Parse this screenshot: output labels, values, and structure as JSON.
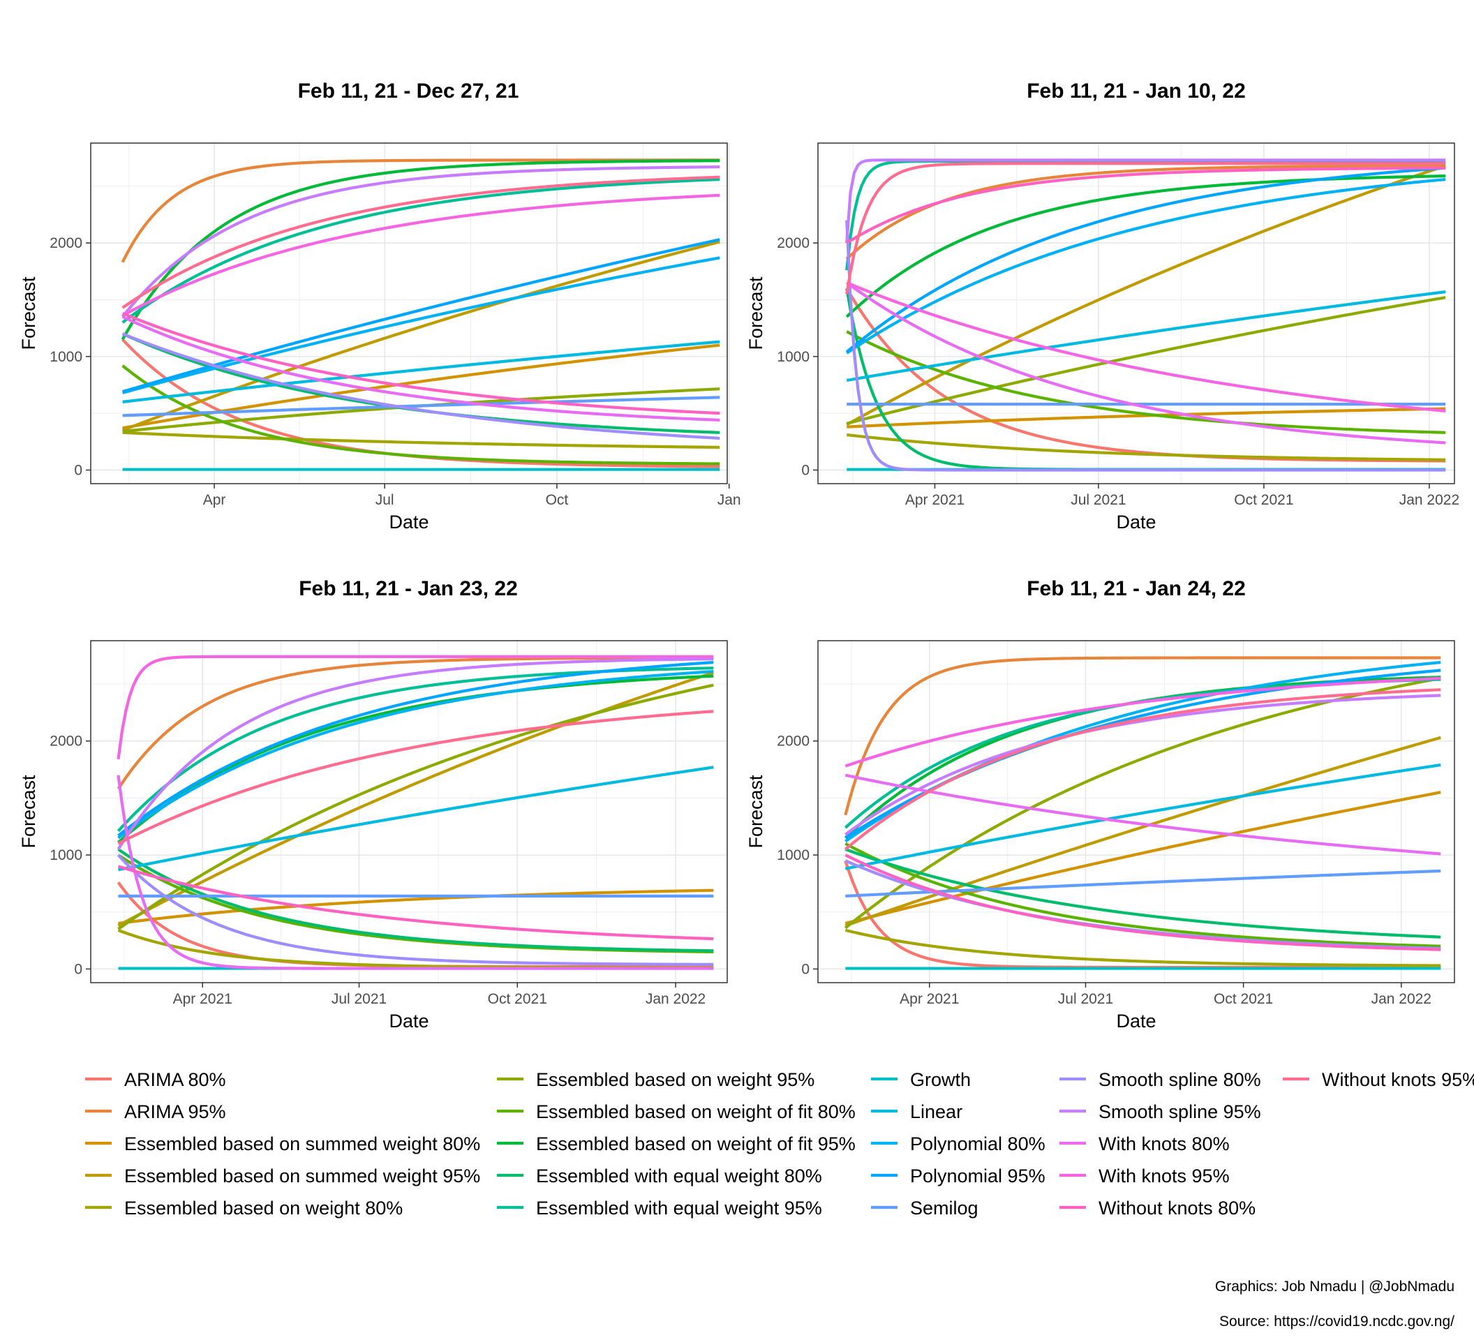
{
  "caption": {
    "graphics": "Graphics: Job Nmadu | @JobNmadu",
    "source": "Source: https://covid19.ncdc.gov.ng/"
  },
  "legend": {
    "items": [
      {
        "label": "ARIMA 80%",
        "color": "#F8766D"
      },
      {
        "label": "ARIMA 95%",
        "color": "#E7853A"
      },
      {
        "label": "Essembled based on summed weight 80%",
        "color": "#D39200"
      },
      {
        "label": "Essembled based on summed weight 95%",
        "color": "#C09B00"
      },
      {
        "label": "Essembled based on weight 80%",
        "color": "#A3A500"
      },
      {
        "label": "Essembled based on weight 95%",
        "color": "#8CAB00"
      },
      {
        "label": "Essembled based on weight of fit 80%",
        "color": "#5BB300"
      },
      {
        "label": "Essembled based on weight of fit 95%",
        "color": "#00BA38"
      },
      {
        "label": "Essembled with equal weight 80%",
        "color": "#00BC6B"
      },
      {
        "label": "Essembled with equal weight 95%",
        "color": "#00BF96"
      },
      {
        "label": "Growth",
        "color": "#00BFC4"
      },
      {
        "label": "Linear",
        "color": "#00BAE0"
      },
      {
        "label": "Polynomial 80%",
        "color": "#00B2F3"
      },
      {
        "label": "Polynomial 95%",
        "color": "#00A5FF"
      },
      {
        "label": "Semilog",
        "color": "#619CFF"
      },
      {
        "label": "Smooth spline 80%",
        "color": "#9F8CFF"
      },
      {
        "label": "Smooth spline 95%",
        "color": "#C77CFF"
      },
      {
        "label": "With knots 80%",
        "color": "#E76BF3"
      },
      {
        "label": "With knots 95%",
        "color": "#F564E3"
      },
      {
        "label": "Without knots 80%",
        "color": "#FF61C3"
      },
      {
        "label": "Without knots 95%",
        "color": "#FF6C90"
      }
    ]
  },
  "chart_data": [
    {
      "type": "line",
      "title": "Feb 11, 21 - Dec 27, 21",
      "xlabel": "Date",
      "ylabel": "Forecast",
      "xlim": [
        "2021-01-25",
        "2021-12-31"
      ],
      "x_start": "2021-02-11",
      "x_end": "2021-12-27",
      "ylim": [
        -120,
        2880
      ],
      "x_ticks": [
        {
          "date": "2021-04-01",
          "label": "Apr"
        },
        {
          "date": "2021-07-01",
          "label": "Jul"
        },
        {
          "date": "2021-10-01",
          "label": "Oct"
        },
        {
          "date": "2022-01-01",
          "label": "Jan"
        }
      ],
      "y_ticks": [
        0,
        1000,
        2000
      ],
      "series": [
        {
          "name": "ARIMA 80%",
          "start": 1150,
          "end": 30,
          "k": 5
        },
        {
          "name": "ARIMA 95%",
          "start": 1830,
          "end": 2730,
          "k": 12
        },
        {
          "name": "Essembled based on summed weight 80%",
          "start": 370,
          "end": 1100,
          "k": 0.5
        },
        {
          "name": "Essembled based on summed weight 95%",
          "start": 350,
          "end": 2010,
          "k": 0.4
        },
        {
          "name": "Essembled based on weight 80%",
          "start": 330,
          "end": 200,
          "k": 1.5
        },
        {
          "name": "Essembled based on weight 95%",
          "start": 340,
          "end": 715,
          "k": 0.8
        },
        {
          "name": "Essembled based on weight of fit 80%",
          "start": 920,
          "end": 55,
          "k": 5
        },
        {
          "name": "Essembled based on weight of fit 95%",
          "start": 1150,
          "end": 2725,
          "k": 6
        },
        {
          "name": "Essembled with equal weight 80%",
          "start": 1200,
          "end": 330,
          "k": 2.5
        },
        {
          "name": "Essembled with equal weight 95%",
          "start": 1300,
          "end": 2560,
          "k": 3
        },
        {
          "name": "Growth",
          "start": 5,
          "end": 5,
          "k": 1
        },
        {
          "name": "Linear",
          "start": 600,
          "end": 1130,
          "k": 0.3
        },
        {
          "name": "Polynomial 80%",
          "start": 680,
          "end": 1870,
          "k": 0.4
        },
        {
          "name": "Polynomial 95%",
          "start": 690,
          "end": 2030,
          "k": 0.3
        },
        {
          "name": "Semilog",
          "start": 480,
          "end": 640,
          "k": 0.3
        },
        {
          "name": "Smooth spline 80%",
          "start": 1200,
          "end": 280,
          "k": 2
        },
        {
          "name": "Smooth spline 95%",
          "start": 1350,
          "end": 2670,
          "k": 5
        },
        {
          "name": "With knots 80%",
          "start": 1350,
          "end": 440,
          "k": 2.5
        },
        {
          "name": "With knots 95%",
          "start": 1360,
          "end": 2420,
          "k": 2.5
        },
        {
          "name": "Without knots 80%",
          "start": 1380,
          "end": 500,
          "k": 2.2
        },
        {
          "name": "Without knots 95%",
          "start": 1430,
          "end": 2580,
          "k": 3
        }
      ]
    },
    {
      "type": "line",
      "title": "Feb 11, 21 - Jan 10, 22",
      "xlabel": "Date",
      "ylabel": "Forecast",
      "xlim": [
        "2021-01-26",
        "2022-01-15"
      ],
      "x_start": "2021-02-11",
      "x_end": "2022-01-10",
      "ylim": [
        -120,
        2880
      ],
      "x_ticks": [
        {
          "date": "2021-04-01",
          "label": "Apr 2021"
        },
        {
          "date": "2021-07-01",
          "label": "Jul 2021"
        },
        {
          "date": "2021-10-01",
          "label": "Oct 2021"
        },
        {
          "date": "2022-01-01",
          "label": "Jan 2022"
        }
      ],
      "y_ticks": [
        0,
        1000,
        2000
      ],
      "series": [
        {
          "name": "ARIMA 80%",
          "start": 1600,
          "end": 80,
          "k": 6
        },
        {
          "name": "ARIMA 95%",
          "start": 1860,
          "end": 2680,
          "k": 6
        },
        {
          "name": "Essembled based on summed weight 80%",
          "start": 380,
          "end": 540,
          "k": 1
        },
        {
          "name": "Essembled based on summed weight 95%",
          "start": 400,
          "end": 2680,
          "k": 0.5
        },
        {
          "name": "Essembled based on weight 80%",
          "start": 310,
          "end": 90,
          "k": 2.5
        },
        {
          "name": "Essembled based on weight 95%",
          "start": 410,
          "end": 1520,
          "k": 0.4
        },
        {
          "name": "Essembled based on weight of fit 80%",
          "start": 1220,
          "end": 330,
          "k": 3
        },
        {
          "name": "Essembled based on weight of fit 95%",
          "start": 1350,
          "end": 2590,
          "k": 4
        },
        {
          "name": "Essembled with equal weight 80%",
          "start": 1600,
          "end": 5,
          "k": 20
        },
        {
          "name": "Essembled with equal weight 95%",
          "start": 1760,
          "end": 2720,
          "k": 60
        },
        {
          "name": "Growth",
          "start": 5,
          "end": 5,
          "k": 1
        },
        {
          "name": "Linear",
          "start": 790,
          "end": 1570,
          "k": 0.3
        },
        {
          "name": "Polynomial 80%",
          "start": 1030,
          "end": 2560,
          "k": 2
        },
        {
          "name": "Polynomial 95%",
          "start": 1040,
          "end": 2660,
          "k": 2.5
        },
        {
          "name": "Semilog",
          "start": 580,
          "end": 580,
          "k": 1
        },
        {
          "name": "Smooth spline 80%",
          "start": 2200,
          "end": 0,
          "k": 60
        },
        {
          "name": "Smooth spline 95%",
          "start": 2000,
          "end": 2730,
          "k": 150
        },
        {
          "name": "With knots 80%",
          "start": 1650,
          "end": 240,
          "k": 2.5
        },
        {
          "name": "With knots 95%",
          "start": 1650,
          "end": 520,
          "k": 1.5
        },
        {
          "name": "Without knots 80%",
          "start": 2000,
          "end": 2660,
          "k": 5
        },
        {
          "name": "Without knots 95%",
          "start": 1550,
          "end": 2700,
          "k": 30
        }
      ]
    },
    {
      "type": "line",
      "title": "Feb 11, 21 - Jan 23, 22",
      "xlabel": "Date",
      "ylabel": "Forecast",
      "xlim": [
        "2021-01-26",
        "2022-01-31"
      ],
      "x_start": "2021-02-11",
      "x_end": "2022-01-23",
      "ylim": [
        -120,
        2880
      ],
      "x_ticks": [
        {
          "date": "2021-04-01",
          "label": "Apr 2021"
        },
        {
          "date": "2021-07-01",
          "label": "Jul 2021"
        },
        {
          "date": "2021-10-01",
          "label": "Oct 2021"
        },
        {
          "date": "2022-01-01",
          "label": "Jan 2022"
        }
      ],
      "y_ticks": [
        0,
        1000,
        2000
      ],
      "series": [
        {
          "name": "ARIMA 80%",
          "start": 760,
          "end": 20,
          "k": 10
        },
        {
          "name": "ARIMA 95%",
          "start": 1580,
          "end": 2730,
          "k": 7
        },
        {
          "name": "Essembled based on summed weight 80%",
          "start": 400,
          "end": 690,
          "k": 2
        },
        {
          "name": "Essembled based on summed weight 95%",
          "start": 380,
          "end": 2600,
          "k": 0.5
        },
        {
          "name": "Essembled based on weight 80%",
          "start": 340,
          "end": 10,
          "k": 6
        },
        {
          "name": "Essembled based on weight 95%",
          "start": 350,
          "end": 2490,
          "k": 1.2
        },
        {
          "name": "Essembled based on weight of fit 80%",
          "start": 1000,
          "end": 150,
          "k": 4
        },
        {
          "name": "Essembled based on weight of fit 95%",
          "start": 1110,
          "end": 2570,
          "k": 3
        },
        {
          "name": "Essembled with equal weight 80%",
          "start": 1050,
          "end": 160,
          "k": 4
        },
        {
          "name": "Essembled with equal weight 95%",
          "start": 1210,
          "end": 2640,
          "k": 4
        },
        {
          "name": "Growth",
          "start": 5,
          "end": 5,
          "k": 1
        },
        {
          "name": "Linear",
          "start": 870,
          "end": 1770,
          "k": 0.3
        },
        {
          "name": "Polynomial 80%",
          "start": 1150,
          "end": 2610,
          "k": 2.5
        },
        {
          "name": "Polynomial 95%",
          "start": 1170,
          "end": 2690,
          "k": 2.5
        },
        {
          "name": "Semilog",
          "start": 640,
          "end": 640,
          "k": 1
        },
        {
          "name": "Smooth spline 80%",
          "start": 1000,
          "end": 40,
          "k": 6
        },
        {
          "name": "Smooth spline 95%",
          "start": 1050,
          "end": 2720,
          "k": 5
        },
        {
          "name": "With knots 80%",
          "start": 1700,
          "end": 5,
          "k": 25
        },
        {
          "name": "With knots 95%",
          "start": 1840,
          "end": 2740,
          "k": 50
        },
        {
          "name": "Without knots 80%",
          "start": 900,
          "end": 265,
          "k": 2.2
        },
        {
          "name": "Without knots 95%",
          "start": 1100,
          "end": 2260,
          "k": 2
        }
      ]
    },
    {
      "type": "line",
      "title": "Feb 11, 21 - Jan 24, 22",
      "xlabel": "Date",
      "ylabel": "Forecast",
      "xlim": [
        "2021-01-26",
        "2022-02-01"
      ],
      "x_start": "2021-02-11",
      "x_end": "2022-01-24",
      "ylim": [
        -120,
        2880
      ],
      "x_ticks": [
        {
          "date": "2021-04-01",
          "label": "Apr 2021"
        },
        {
          "date": "2021-07-01",
          "label": "Jul 2021"
        },
        {
          "date": "2021-10-01",
          "label": "Oct 2021"
        },
        {
          "date": "2022-01-01",
          "label": "Jan 2022"
        }
      ],
      "y_ticks": [
        0,
        1000,
        2000
      ],
      "series": [
        {
          "name": "ARIMA 80%",
          "start": 950,
          "end": 15,
          "k": 18
        },
        {
          "name": "ARIMA 95%",
          "start": 1350,
          "end": 2730,
          "k": 15
        },
        {
          "name": "Essembled based on summed weight 80%",
          "start": 400,
          "end": 1550,
          "k": 0.3
        },
        {
          "name": "Essembled based on summed weight 95%",
          "start": 380,
          "end": 2030,
          "k": 0.2
        },
        {
          "name": "Essembled based on weight 80%",
          "start": 340,
          "end": 30,
          "k": 4
        },
        {
          "name": "Essembled based on weight 95%",
          "start": 360,
          "end": 2550,
          "k": 1.5
        },
        {
          "name": "Essembled based on weight of fit 80%",
          "start": 1100,
          "end": 200,
          "k": 3
        },
        {
          "name": "Essembled based on weight of fit 95%",
          "start": 1150,
          "end": 2560,
          "k": 3.5
        },
        {
          "name": "Essembled with equal weight 80%",
          "start": 1050,
          "end": 280,
          "k": 2.2
        },
        {
          "name": "Essembled with equal weight 95%",
          "start": 1240,
          "end": 2540,
          "k": 3.5
        },
        {
          "name": "Growth",
          "start": 5,
          "end": 5,
          "k": 1
        },
        {
          "name": "Linear",
          "start": 880,
          "end": 1790,
          "k": 0.3
        },
        {
          "name": "Polynomial 80%",
          "start": 1120,
          "end": 2690,
          "k": 2
        },
        {
          "name": "Polynomial 95%",
          "start": 1150,
          "end": 2620,
          "k": 2
        },
        {
          "name": "Semilog",
          "start": 640,
          "end": 860,
          "k": 0.3
        },
        {
          "name": "Smooth spline 80%",
          "start": 950,
          "end": 180,
          "k": 2.8
        },
        {
          "name": "Smooth spline 95%",
          "start": 1180,
          "end": 2400,
          "k": 3
        },
        {
          "name": "With knots 80%",
          "start": 1700,
          "end": 1010,
          "k": 1
        },
        {
          "name": "With knots 95%",
          "start": 1780,
          "end": 2550,
          "k": 2
        },
        {
          "name": "Without knots 80%",
          "start": 1000,
          "end": 170,
          "k": 3
        },
        {
          "name": "Without knots 95%",
          "start": 1050,
          "end": 2450,
          "k": 3
        }
      ]
    }
  ]
}
